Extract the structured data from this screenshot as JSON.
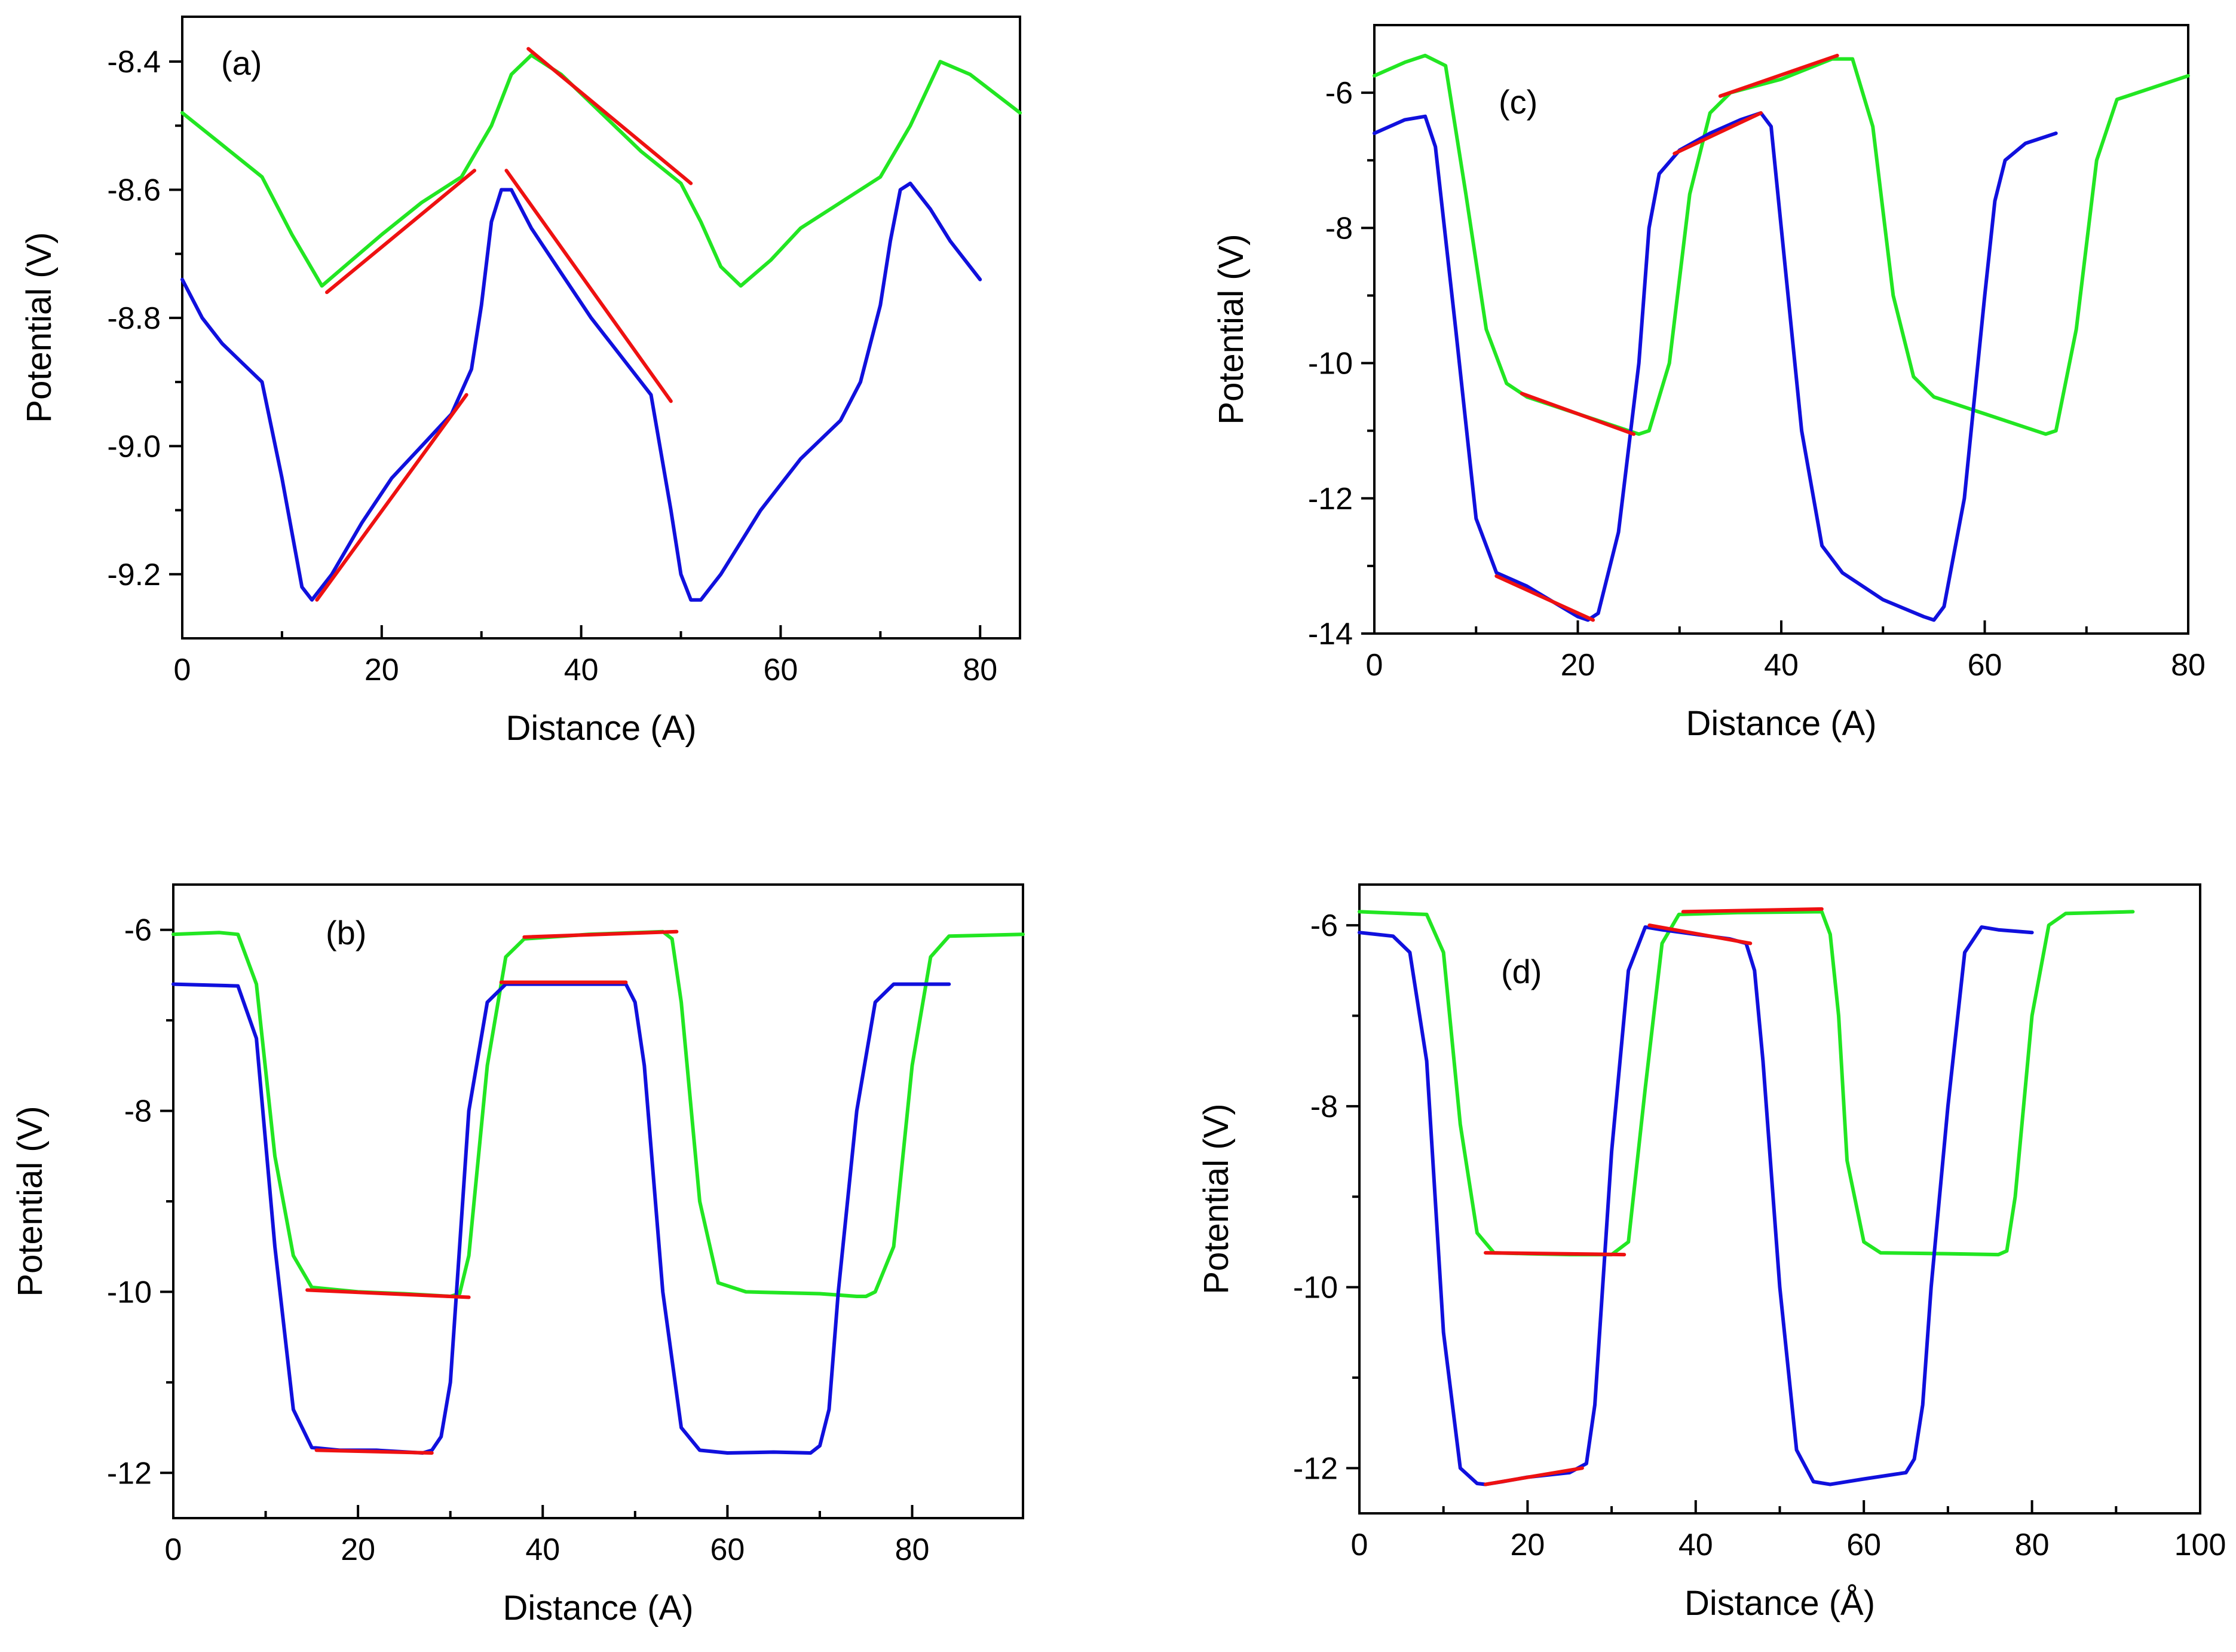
{
  "colors": {
    "green": "#22e622",
    "blue": "#1010dd",
    "red": "#ee1111"
  },
  "chart_data": [
    {
      "id": "a",
      "type": "line",
      "panel_label": "(a)",
      "xlabel": "Distance (A)",
      "ylabel": "Potential (V)",
      "xlim": [
        0,
        84
      ],
      "ylim": [
        -9.3,
        -8.33
      ],
      "xticks": [
        0,
        20,
        40,
        60,
        80
      ],
      "xtick_labels": [
        "0",
        "20",
        "40",
        "60",
        "80"
      ],
      "yticks": [
        -9.2,
        -9.0,
        -8.8,
        -8.6,
        -8.4
      ],
      "ytick_labels": [
        "-9.2",
        "-9.0",
        "-8.8",
        "-8.6",
        "-8.4"
      ],
      "series": [
        {
          "name": "green",
          "color": "green",
          "x": [
            0,
            4,
            8,
            11,
            14,
            17,
            20,
            24,
            28,
            31,
            33,
            35,
            38,
            42,
            46,
            50,
            52,
            54,
            56,
            59,
            62,
            66,
            70,
            73,
            76,
            79,
            84
          ],
          "y": [
            -8.48,
            -8.53,
            -8.58,
            -8.67,
            -8.75,
            -8.71,
            -8.67,
            -8.62,
            -8.58,
            -8.5,
            -8.42,
            -8.39,
            -8.42,
            -8.48,
            -8.54,
            -8.59,
            -8.65,
            -8.72,
            -8.75,
            -8.71,
            -8.66,
            -8.62,
            -8.58,
            -8.5,
            -8.4,
            -8.42,
            -8.48
          ]
        },
        {
          "name": "blue",
          "color": "blue",
          "x": [
            0,
            2,
            4,
            6,
            8,
            10,
            12,
            13,
            15,
            18,
            21,
            24,
            27,
            29,
            30,
            31,
            32,
            33,
            35,
            38,
            41,
            44,
            47,
            49,
            50,
            51,
            52,
            54,
            56,
            58,
            60,
            62,
            64,
            66,
            68,
            70,
            71,
            72,
            73,
            75,
            77,
            79,
            80
          ],
          "y": [
            -8.74,
            -8.8,
            -8.84,
            -8.87,
            -8.9,
            -9.05,
            -9.22,
            -9.24,
            -9.2,
            -9.12,
            -9.05,
            -9.0,
            -8.95,
            -8.88,
            -8.78,
            -8.65,
            -8.6,
            -8.6,
            -8.66,
            -8.73,
            -8.8,
            -8.86,
            -8.92,
            -9.1,
            -9.2,
            -9.24,
            -9.24,
            -9.2,
            -9.15,
            -9.1,
            -9.06,
            -9.02,
            -8.99,
            -8.96,
            -8.9,
            -8.78,
            -8.68,
            -8.6,
            -8.59,
            -8.63,
            -8.68,
            -8.72,
            -8.74
          ]
        }
      ],
      "fits": [
        {
          "x": [
            14.5,
            29.3
          ],
          "y": [
            -8.76,
            -8.57
          ]
        },
        {
          "x": [
            34.7,
            51.0
          ],
          "y": [
            -8.38,
            -8.59
          ]
        },
        {
          "x": [
            13.5,
            28.5
          ],
          "y": [
            -9.24,
            -8.92
          ]
        },
        {
          "x": [
            32.5,
            49.0
          ],
          "y": [
            -8.57,
            -8.93
          ]
        }
      ]
    },
    {
      "id": "c",
      "type": "line",
      "panel_label": "(c)",
      "xlabel": "Distance (A)",
      "ylabel": "Potential (V)",
      "xlim": [
        0,
        80
      ],
      "ylim": [
        -14,
        -5
      ],
      "xticks": [
        0,
        20,
        40,
        60,
        80
      ],
      "xtick_labels": [
        "0",
        "20",
        "40",
        "60",
        "80"
      ],
      "yticks": [
        -14,
        -12,
        -10,
        -8,
        -6
      ],
      "ytick_labels": [
        "-14",
        "-12",
        "-10",
        "-8",
        "-6"
      ],
      "series": [
        {
          "name": "green",
          "color": "green",
          "x": [
            0,
            3,
            5,
            7,
            9,
            11,
            13,
            15,
            20,
            25,
            26,
            27,
            29,
            31,
            33,
            35,
            40,
            45,
            47,
            49,
            51,
            53,
            55,
            60,
            65,
            66,
            67,
            69,
            71,
            73,
            76,
            80
          ],
          "y": [
            -5.75,
            -5.55,
            -5.45,
            -5.6,
            -7.5,
            -9.5,
            -10.3,
            -10.5,
            -10.75,
            -11.0,
            -11.05,
            -11.0,
            -10.0,
            -7.5,
            -6.3,
            -6.0,
            -5.8,
            -5.5,
            -5.5,
            -6.5,
            -9.0,
            -10.2,
            -10.5,
            -10.75,
            -11.0,
            -11.05,
            -11.0,
            -9.5,
            -7.0,
            -6.1,
            -5.95,
            -5.75
          ]
        },
        {
          "name": "blue",
          "color": "blue",
          "x": [
            0,
            3,
            5,
            6,
            8,
            10,
            12,
            15,
            20,
            21,
            22,
            24,
            26,
            27,
            28,
            30,
            33,
            36,
            38,
            39,
            40,
            42,
            44,
            46,
            48,
            50,
            54,
            55,
            56,
            58,
            60,
            61,
            62,
            64,
            67
          ],
          "y": [
            -6.6,
            -6.4,
            -6.35,
            -6.8,
            -9.5,
            -12.3,
            -13.1,
            -13.3,
            -13.75,
            -13.8,
            -13.7,
            -12.5,
            -10.0,
            -8.0,
            -7.2,
            -6.85,
            -6.6,
            -6.4,
            -6.3,
            -6.5,
            -8.0,
            -11.0,
            -12.7,
            -13.1,
            -13.3,
            -13.5,
            -13.75,
            -13.8,
            -13.6,
            -12.0,
            -9.0,
            -7.6,
            -7.0,
            -6.75,
            -6.6
          ]
        }
      ],
      "fits": [
        {
          "x": [
            14.5,
            25.5
          ],
          "y": [
            -10.45,
            -11.05
          ]
        },
        {
          "x": [
            34.0,
            45.5
          ],
          "y": [
            -6.05,
            -5.45
          ]
        },
        {
          "x": [
            12.0,
            21.5
          ],
          "y": [
            -13.15,
            -13.8
          ]
        },
        {
          "x": [
            29.5,
            38.0
          ],
          "y": [
            -6.9,
            -6.3
          ]
        }
      ]
    },
    {
      "id": "b",
      "type": "line",
      "panel_label": "(b)",
      "xlabel": "Distance (A)",
      "ylabel": "Potential (V)",
      "xlim": [
        0,
        92
      ],
      "ylim": [
        -12.5,
        -5.5
      ],
      "xticks": [
        0,
        20,
        40,
        60,
        80
      ],
      "xtick_labels": [
        "0",
        "20",
        "40",
        "60",
        "80"
      ],
      "yticks": [
        -12,
        -10,
        -8,
        -6
      ],
      "ytick_labels": [
        "-12",
        "-10",
        "-8",
        "-6"
      ],
      "series": [
        {
          "name": "green",
          "color": "green",
          "x": [
            0,
            5,
            7,
            9,
            11,
            13,
            15,
            20,
            25,
            30,
            31,
            32,
            34,
            36,
            38,
            45,
            53,
            54,
            55,
            57,
            59,
            62,
            70,
            74,
            75,
            76,
            78,
            80,
            82,
            84,
            92
          ],
          "y": [
            -6.05,
            -6.03,
            -6.05,
            -6.6,
            -8.5,
            -9.6,
            -9.95,
            -10.0,
            -10.02,
            -10.05,
            -10.02,
            -9.6,
            -7.5,
            -6.3,
            -6.1,
            -6.05,
            -6.02,
            -6.1,
            -6.8,
            -9.0,
            -9.9,
            -10.0,
            -10.02,
            -10.05,
            -10.05,
            -10.0,
            -9.5,
            -7.5,
            -6.3,
            -6.07,
            -6.05
          ]
        },
        {
          "name": "blue",
          "color": "blue",
          "x": [
            0,
            7,
            9,
            11,
            13,
            15,
            18,
            22,
            27,
            28,
            29,
            30,
            31,
            32,
            34,
            36,
            38,
            42,
            49,
            50,
            51,
            53,
            55,
            57,
            60,
            65,
            69,
            70,
            71,
            72,
            74,
            76,
            78,
            80,
            84
          ],
          "y": [
            -6.6,
            -6.62,
            -7.2,
            -9.5,
            -11.3,
            -11.72,
            -11.75,
            -11.75,
            -11.78,
            -11.75,
            -11.6,
            -11.0,
            -9.5,
            -8.0,
            -6.8,
            -6.6,
            -6.6,
            -6.6,
            -6.6,
            -6.8,
            -7.5,
            -10.0,
            -11.5,
            -11.75,
            -11.78,
            -11.77,
            -11.78,
            -11.7,
            -11.3,
            -10.0,
            -8.0,
            -6.8,
            -6.6,
            -6.6,
            -6.6
          ]
        }
      ],
      "fits": [
        {
          "x": [
            14.5,
            32.0
          ],
          "y": [
            -9.98,
            -10.06
          ]
        },
        {
          "x": [
            38.0,
            54.5
          ],
          "y": [
            -6.08,
            -6.02
          ]
        },
        {
          "x": [
            15.5,
            28.0
          ],
          "y": [
            -11.75,
            -11.78
          ]
        },
        {
          "x": [
            35.5,
            49.0
          ],
          "y": [
            -6.58,
            -6.58
          ]
        }
      ]
    },
    {
      "id": "d",
      "type": "line",
      "panel_label": "(d)",
      "xlabel": "Distance (Å)",
      "ylabel": "Potential (V)",
      "xlim": [
        0,
        100
      ],
      "ylim": [
        -12.5,
        -5.55
      ],
      "xticks": [
        0,
        20,
        40,
        60,
        80,
        100
      ],
      "xtick_labels": [
        "0",
        "20",
        "40",
        "60",
        "80",
        "100"
      ],
      "yticks": [
        -12,
        -10,
        -8,
        -6
      ],
      "ytick_labels": [
        "-12",
        "-10",
        "-8",
        "-6"
      ],
      "series": [
        {
          "name": "green",
          "color": "green",
          "x": [
            0,
            8,
            10,
            12,
            14,
            16,
            20,
            25,
            30,
            32,
            34,
            36,
            38,
            45,
            55,
            56,
            57,
            58,
            60,
            62,
            70,
            76,
            77,
            78,
            80,
            82,
            84,
            92
          ],
          "y": [
            -5.85,
            -5.88,
            -6.3,
            -8.2,
            -9.4,
            -9.62,
            -9.63,
            -9.64,
            -9.64,
            -9.5,
            -7.8,
            -6.2,
            -5.88,
            -5.86,
            -5.85,
            -6.1,
            -7.0,
            -8.6,
            -9.5,
            -9.62,
            -9.63,
            -9.64,
            -9.6,
            -9.0,
            -7.0,
            -6.0,
            -5.87,
            -5.85
          ]
        },
        {
          "name": "blue",
          "color": "blue",
          "x": [
            0,
            4,
            6,
            8,
            10,
            12,
            14,
            15,
            17,
            20,
            25,
            27,
            28,
            30,
            32,
            34,
            36,
            40,
            44,
            46,
            47,
            48,
            50,
            52,
            54,
            56,
            60,
            65,
            66,
            67,
            68,
            70,
            72,
            74,
            76,
            80
          ],
          "y": [
            -6.08,
            -6.12,
            -6.3,
            -7.5,
            -10.5,
            -12.0,
            -12.17,
            -12.18,
            -12.15,
            -12.1,
            -12.05,
            -11.95,
            -11.3,
            -8.5,
            -6.5,
            -6.02,
            -6.05,
            -6.1,
            -6.15,
            -6.2,
            -6.5,
            -7.5,
            -10.0,
            -11.8,
            -12.15,
            -12.18,
            -12.12,
            -12.05,
            -11.9,
            -11.3,
            -10.0,
            -8.0,
            -6.3,
            -6.02,
            -6.05,
            -6.08
          ]
        }
      ],
      "fits": [
        {
          "x": [
            15.0,
            31.5
          ],
          "y": [
            -9.62,
            -9.64
          ]
        },
        {
          "x": [
            38.5,
            55.0
          ],
          "y": [
            -5.85,
            -5.82
          ]
        },
        {
          "x": [
            15.0,
            26.5
          ],
          "y": [
            -12.18,
            -12.0
          ]
        },
        {
          "x": [
            34.5,
            46.5
          ],
          "y": [
            -6.0,
            -6.2
          ]
        }
      ]
    }
  ]
}
